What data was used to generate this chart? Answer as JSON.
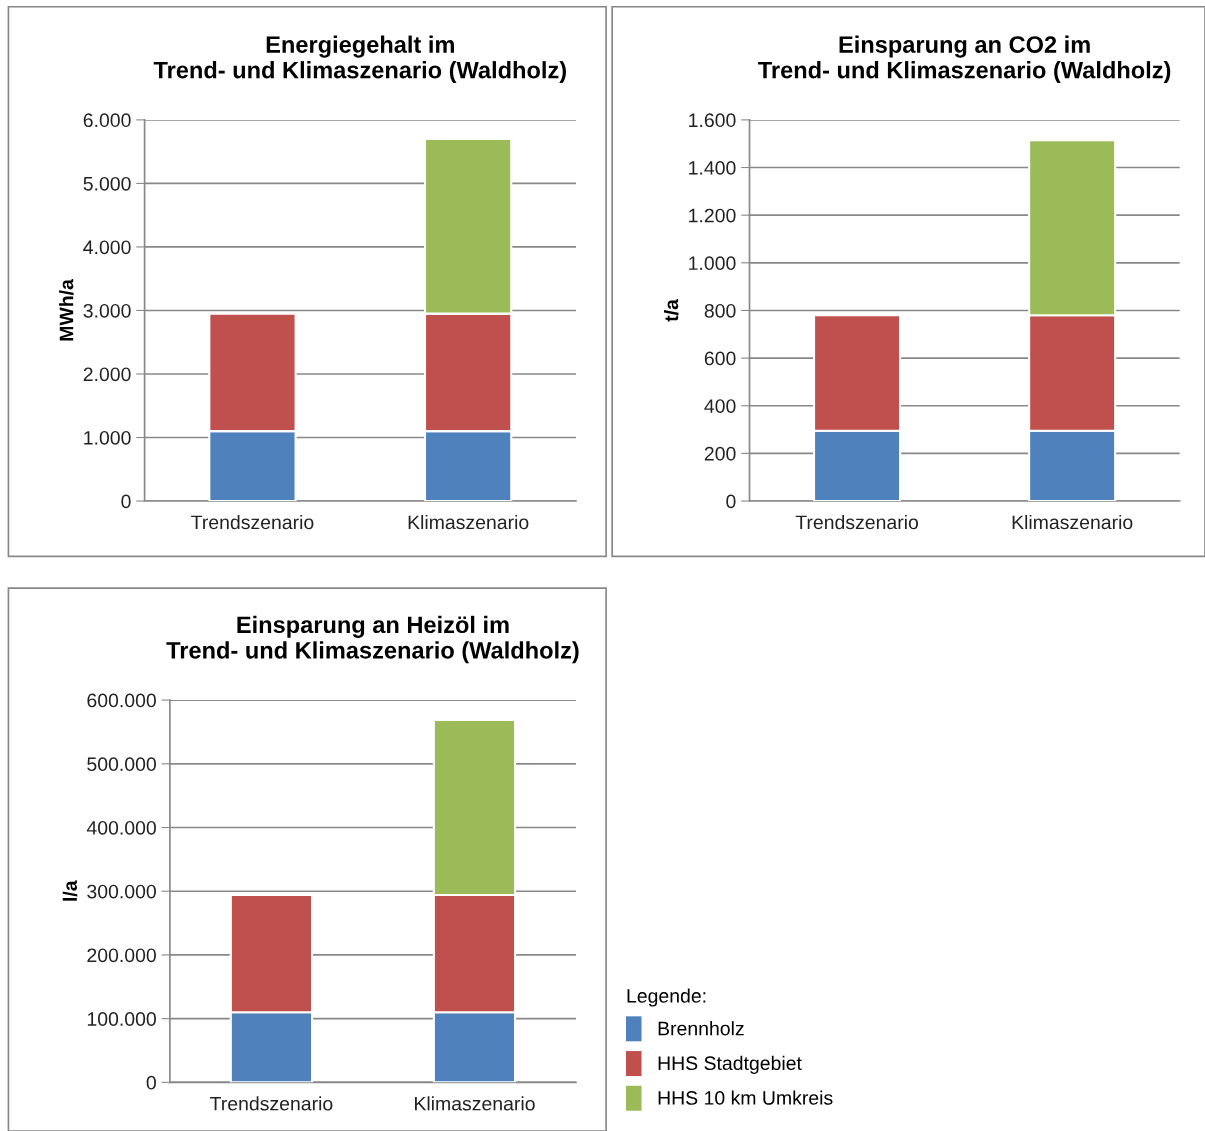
{
  "chart_data": [
    {
      "type": "bar",
      "stacked": true,
      "title": "Energiegehalt im\nTrend- und Klimaszenario (Waldholz)",
      "ylabel": "MWh/a",
      "categories": [
        "Trendszenario",
        "Klimaszenario"
      ],
      "series": [
        {
          "color": "#4f81bd",
          "values": [
            1100,
            1100
          ]
        },
        {
          "color": "#c0504d",
          "values": [
            1850,
            1850
          ]
        },
        {
          "color": "#9bbb59",
          "values": [
            null,
            2750
          ]
        }
      ],
      "ylim": [
        0,
        6000
      ],
      "yticks": [
        0,
        {
          "value": 1000,
          "label": "1.000"
        },
        {
          "value": 2000,
          "label": "2.000"
        },
        {
          "value": 3000,
          "label": "3.000"
        },
        {
          "value": 4000,
          "label": "4.000"
        },
        {
          "value": 5000,
          "label": "5.000"
        },
        {
          "value": 6000,
          "label": "6.000"
        }
      ],
      "grid": "y",
      "legend": false
    },
    {
      "type": "bar",
      "stacked": true,
      "title": "Einsparung an CO2 im\nTrend- und Klimaszenario (Waldholz)",
      "ylabel": "t/a",
      "categories": [
        "Trendszenario",
        "Klimaszenario"
      ],
      "series": [
        {
          "color": "#4f81bd",
          "values": [
            295,
            295
          ]
        },
        {
          "color": "#c0504d",
          "values": [
            485,
            485
          ]
        },
        {
          "color": "#9bbb59",
          "values": [
            null,
            735
          ]
        }
      ],
      "ylim": [
        0,
        1600
      ],
      "yticks": [
        0,
        200,
        400,
        600,
        800,
        {
          "value": 1000,
          "label": "1.000"
        },
        {
          "value": 1200,
          "label": "1.200"
        },
        {
          "value": 1400,
          "label": "1.400"
        },
        {
          "value": 1600,
          "label": "1.600"
        }
      ],
      "grid": "y",
      "legend": false
    },
    {
      "type": "bar",
      "stacked": true,
      "title": "Einsparung an Heizöl im\nTrend- und Klimaszenario (Waldholz)",
      "ylabel": "l/a",
      "categories": [
        "Trendszenario",
        "Klimaszenario"
      ],
      "series": [
        {
          "name": "Brennholz",
          "color": "#4f81bd",
          "values": [
            110000,
            110000
          ]
        },
        {
          "name": "HHS Stadtgebiet",
          "color": "#c0504d",
          "values": [
            184000,
            184000
          ]
        },
        {
          "name": "HHS 10 km Umkreis",
          "color": "#9bbb59",
          "values": [
            null,
            275000
          ]
        }
      ],
      "ylim": [
        0,
        600000
      ],
      "yticks": [
        0,
        {
          "value": 100000,
          "label": "100.000"
        },
        {
          "value": 200000,
          "label": "200.000"
        },
        {
          "value": 300000,
          "label": "300.000"
        },
        {
          "value": 400000,
          "label": "400.000"
        },
        {
          "value": 500000,
          "label": "500.000"
        },
        {
          "value": 600000,
          "label": "600.000"
        }
      ],
      "grid": "y",
      "legend": "right",
      "legend_title": "Legende:"
    }
  ]
}
